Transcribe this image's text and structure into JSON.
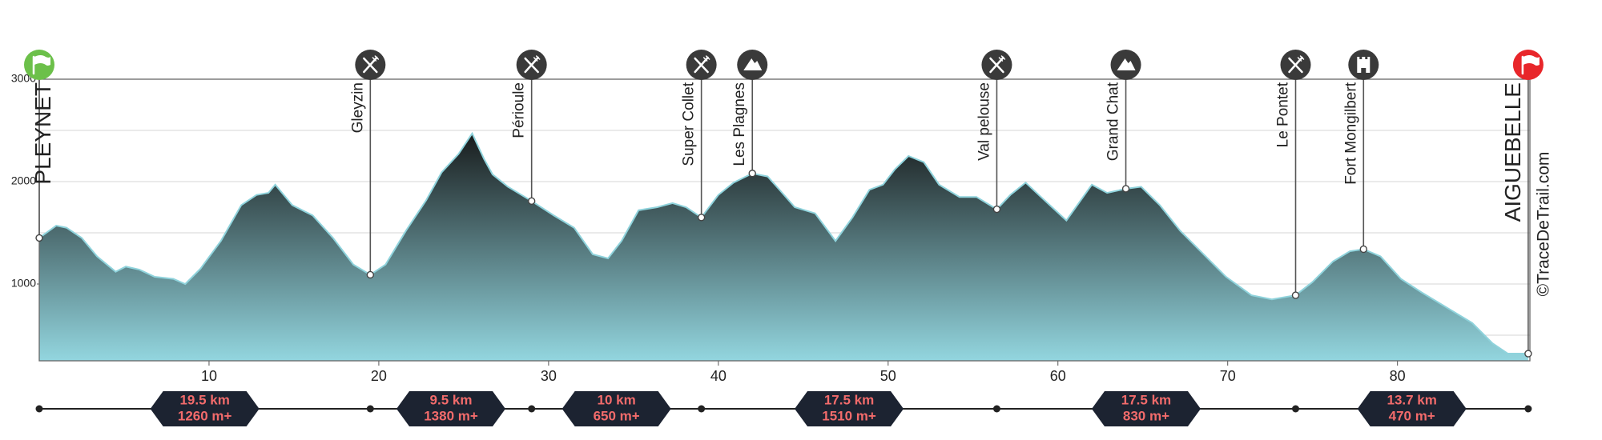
{
  "chart_data": {
    "type": "area",
    "x": [
      0,
      1.0,
      1.6,
      2.5,
      3.4,
      4.5,
      5.1,
      5.9,
      6.8,
      7.9,
      8.6,
      9.5,
      10.7,
      11.9,
      12.8,
      13.5,
      13.9,
      14.9,
      16.1,
      17.3,
      18.5,
      19.5,
      20.4,
      21.6,
      22.8,
      23.7,
      24.7,
      25.5,
      26.2,
      26.7,
      27.6,
      29.0,
      30.3,
      31.5,
      32.6,
      33.5,
      34.3,
      35.3,
      36.4,
      37.3,
      38.1,
      39.0,
      40.0,
      40.9,
      42.0,
      42.9,
      43.6,
      44.5,
      45.7,
      46.9,
      47.9,
      48.9,
      49.7,
      50.4,
      51.2,
      52.1,
      53.0,
      54.2,
      55.2,
      56.4,
      57.2,
      58.1,
      59.0,
      60.5,
      62.0,
      62.9,
      64.0,
      64.9,
      66.0,
      67.2,
      68.4,
      69.9,
      71.4,
      72.6,
      74.0,
      75.0,
      76.2,
      77.2,
      78.0,
      79.0,
      80.2,
      81.4,
      82.9,
      84.4,
      85.6,
      86.5,
      87.7
    ],
    "values": [
      1450,
      1570,
      1550,
      1450,
      1270,
      1120,
      1170,
      1140,
      1070,
      1050,
      1000,
      1150,
      1420,
      1770,
      1870,
      1890,
      1970,
      1770,
      1670,
      1450,
      1190,
      1090,
      1190,
      1520,
      1820,
      2090,
      2270,
      2470,
      2220,
      2070,
      1950,
      1810,
      1670,
      1550,
      1290,
      1250,
      1420,
      1720,
      1750,
      1790,
      1750,
      1650,
      1870,
      1990,
      2080,
      2050,
      1920,
      1750,
      1690,
      1420,
      1650,
      1920,
      1970,
      2120,
      2250,
      2190,
      1970,
      1850,
      1850,
      1730,
      1870,
      1990,
      1850,
      1620,
      1970,
      1890,
      1930,
      1950,
      1770,
      1520,
      1320,
      1070,
      890,
      850,
      890,
      1020,
      1220,
      1320,
      1340,
      1270,
      1050,
      920,
      770,
      620,
      420,
      320,
      320
    ],
    "xlim": [
      0,
      87.8
    ],
    "xticks": [
      10,
      20,
      30,
      40,
      50,
      60,
      70,
      80
    ],
    "ylim": [
      250,
      3000
    ],
    "yticks": [
      1000,
      2000,
      3000
    ],
    "ygrid": [
      500,
      1000,
      1500,
      2000,
      2500,
      3000
    ],
    "fill_top": "#111111",
    "fill_bottom": "#93d6df",
    "line_color": "#8fd3dc",
    "waypoints": [
      {
        "name": "PLEYNET",
        "km": 0,
        "elevation": 1450,
        "kind": "start"
      },
      {
        "name": "Gleyzin",
        "km": 19.5,
        "elevation": 1090,
        "kind": "food"
      },
      {
        "name": "Périoule",
        "km": 29.0,
        "elevation": 1810,
        "kind": "food"
      },
      {
        "name": "Super Collet",
        "km": 39.0,
        "elevation": 1650,
        "kind": "food"
      },
      {
        "name": "Les Plagnes",
        "km": 42.0,
        "elevation": 2080,
        "kind": "summit"
      },
      {
        "name": "Val pelouse",
        "km": 56.4,
        "elevation": 1730,
        "kind": "food"
      },
      {
        "name": "Grand Chat",
        "km": 64.0,
        "elevation": 1930,
        "kind": "summit"
      },
      {
        "name": "Le Pontet",
        "km": 74.0,
        "elevation": 890,
        "kind": "food"
      },
      {
        "name": "Fort Mongilbert",
        "km": 78.0,
        "elevation": 1340,
        "kind": "fort"
      },
      {
        "name": "AIGUEBELLE",
        "km": 87.7,
        "elevation": 320,
        "kind": "finish"
      }
    ],
    "stages": [
      {
        "from": 0,
        "to": 19.5,
        "distance": "19.5 km",
        "gain": "1260 m+"
      },
      {
        "from": 19.5,
        "to": 29.0,
        "distance": "9.5 km",
        "gain": "1380 m+"
      },
      {
        "from": 29.0,
        "to": 39.0,
        "distance": "10 km",
        "gain": "650 m+"
      },
      {
        "from": 39.0,
        "to": 56.4,
        "distance": "17.5 km",
        "gain": "1510 m+"
      },
      {
        "from": 56.4,
        "to": 74.0,
        "distance": "17.5 km",
        "gain": "830 m+"
      },
      {
        "from": 74.0,
        "to": 87.7,
        "distance": "13.7 km",
        "gain": "470 m+"
      }
    ],
    "copyright": "©TraceDeTrail.com"
  }
}
